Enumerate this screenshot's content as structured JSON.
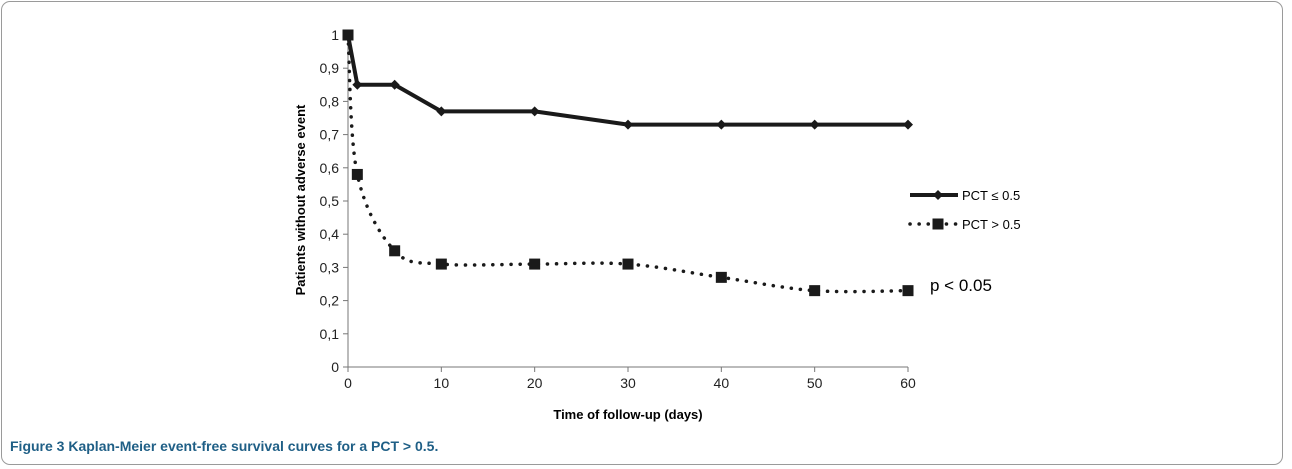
{
  "chart_data": {
    "type": "line",
    "title": "",
    "xlabel": "Time of follow-up (days)",
    "ylabel": "Patients without adverse event",
    "xlim": [
      0,
      60
    ],
    "ylim": [
      0,
      1
    ],
    "x_ticks": [
      "0",
      "10",
      "20",
      "30",
      "40",
      "50",
      "60"
    ],
    "y_ticks": [
      "0",
      "0,1",
      "0,2",
      "0,3",
      "0,4",
      "0,5",
      "0,6",
      "0,7",
      "0,8",
      "0,9",
      "1"
    ],
    "grid": false,
    "legend_position": "right",
    "series": [
      {
        "name": "PCT ≤ 0.5",
        "style": "solid",
        "marker": "diamond",
        "color": "#1a1a1a",
        "x": [
          0,
          1,
          5,
          10,
          20,
          30,
          40,
          50,
          60
        ],
        "y": [
          1,
          0.85,
          0.85,
          0.77,
          0.77,
          0.73,
          0.73,
          0.73,
          0.73
        ]
      },
      {
        "name": "PCT > 0.5",
        "style": "dotted",
        "marker": "square",
        "color": "#1a1a1a",
        "x": [
          0,
          1,
          5,
          10,
          20,
          30,
          40,
          50,
          60
        ],
        "y": [
          1,
          0.58,
          0.35,
          0.31,
          0.31,
          0.31,
          0.27,
          0.23,
          0.23
        ]
      }
    ],
    "annotations": [
      {
        "text": "p < 0.05",
        "x": 60,
        "y": 0.235
      }
    ]
  },
  "caption": {
    "label": "Figure 3",
    "text": "Kaplan-Meier event-free survival curves for a PCT > 0.5."
  }
}
